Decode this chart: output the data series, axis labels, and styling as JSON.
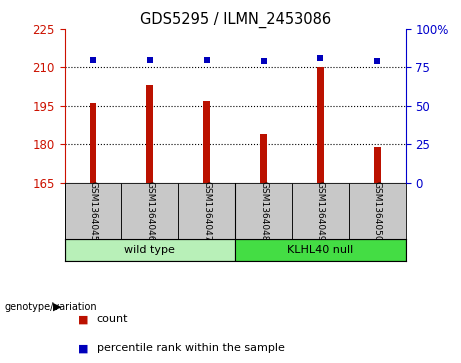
{
  "title": "GDS5295 / ILMN_2453086",
  "samples": [
    "GSM1364045",
    "GSM1364046",
    "GSM1364047",
    "GSM1364048",
    "GSM1364049",
    "GSM1364050"
  ],
  "count_values": [
    196,
    203,
    197,
    184,
    210,
    179
  ],
  "percentile_values": [
    80,
    80,
    80,
    79,
    81,
    79
  ],
  "left_ylim": [
    165,
    225
  ],
  "left_yticks": [
    165,
    180,
    195,
    210,
    225
  ],
  "right_ylim": [
    0,
    100
  ],
  "right_yticks": [
    0,
    25,
    50,
    75,
    100
  ],
  "right_yticklabels": [
    "0",
    "25",
    "50",
    "75",
    "100%"
  ],
  "hlines": [
    180,
    195,
    210
  ],
  "bar_color": "#bb1100",
  "dot_color": "#0000bb",
  "bar_width": 0.12,
  "groups": [
    {
      "label": "wild type",
      "color": "#90ee90"
    },
    {
      "label": "KLHL40 null",
      "color": "#44dd44"
    }
  ],
  "group_label": "genotype/variation",
  "left_tick_color": "#cc1100",
  "right_tick_color": "#0000cc",
  "sample_box_color": "#c8c8c8",
  "wt_color": "#b8f0b8",
  "kl_color": "#44dd44",
  "fig_width": 4.61,
  "fig_height": 3.63,
  "dpi": 100
}
